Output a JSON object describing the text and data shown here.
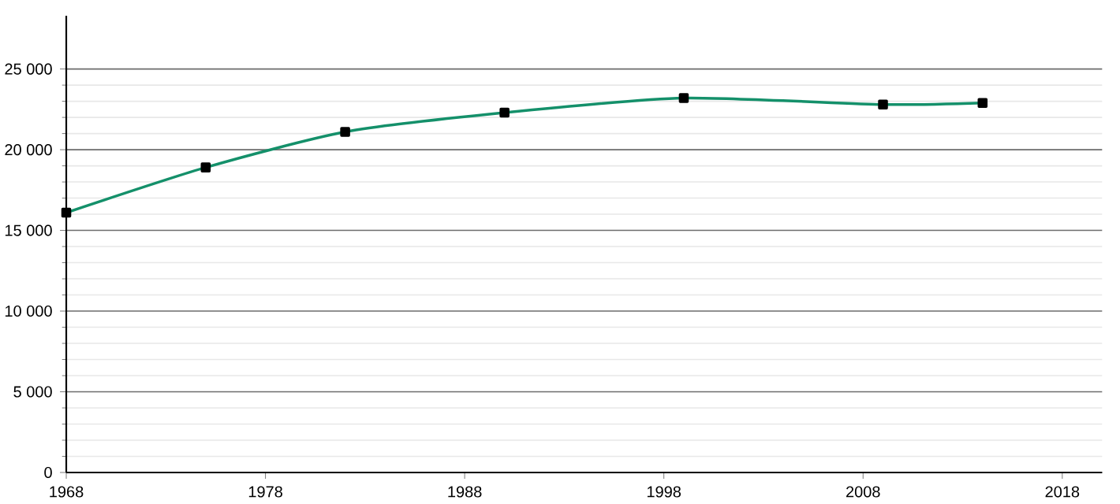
{
  "chart_data": {
    "type": "line",
    "x": [
      1968,
      1975,
      1982,
      1990,
      1999,
      2009,
      2014
    ],
    "series": [
      {
        "color": "#14906a",
        "values": [
          16100,
          18900,
          21100,
          22300,
          23200,
          22800,
          22900
        ]
      }
    ],
    "xlim": [
      1968,
      2020
    ],
    "xticks": [
      1968,
      1978,
      1988,
      1998,
      2008,
      2018
    ],
    "ylim": [
      0,
      28300
    ],
    "yticks": [
      {
        "value": 0,
        "label": "0"
      },
      {
        "value": 5000,
        "label": "5 000"
      },
      {
        "value": 10000,
        "label": "10 000"
      },
      {
        "value": 15000,
        "label": "15 000"
      },
      {
        "value": 20000,
        "label": "20 000"
      },
      {
        "value": 25000,
        "label": "25 000"
      }
    ],
    "grid": "y",
    "marker": "square",
    "line_style": "solid"
  }
}
